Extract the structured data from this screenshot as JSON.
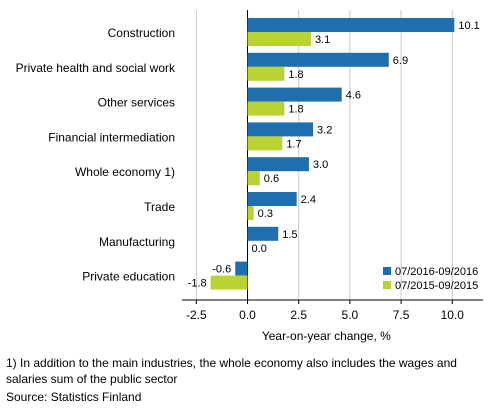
{
  "chart_data": {
    "type": "bar",
    "orientation": "horizontal",
    "categories": [
      "Construction",
      "Private health and social work",
      "Other services",
      "Financial intermediation",
      "Whole economy 1)",
      "Trade",
      "Manufacturing",
      "Private education"
    ],
    "series": [
      {
        "name": "07/2016-09/2016",
        "color": "#1f6fb0",
        "values": [
          10.1,
          6.9,
          4.6,
          3.2,
          3.0,
          2.4,
          1.5,
          -0.6
        ],
        "labels": [
          "10.1",
          "6.9",
          "4.6",
          "3.2",
          "3.0",
          "2.4",
          "1.5",
          "-0.6"
        ]
      },
      {
        "name": "07/2015-09/2015",
        "color": "#b9d432",
        "values": [
          3.1,
          1.8,
          1.8,
          1.7,
          0.6,
          0.3,
          0.0,
          -1.8
        ],
        "labels": [
          "3.1",
          "1.8",
          "1.8",
          "1.7",
          "0.6",
          "0.3",
          "0.0",
          "-1.8"
        ]
      }
    ],
    "xlabel": "Year-on-year change, %",
    "xlim": [
      -3.2,
      11.5
    ],
    "xticks": [
      -2.5,
      0.0,
      2.5,
      5.0,
      7.5,
      10.0
    ],
    "xtick_labels": [
      "-2.5",
      "0.0",
      "2.5",
      "5.0",
      "7.5",
      "10.0"
    ],
    "grid": true,
    "legend_position": "bottom-right"
  },
  "footnote": "1) In addition to the main industries, the whole economy also includes the wages and salaries sum of the public sector",
  "source": "Source: Statistics Finland"
}
